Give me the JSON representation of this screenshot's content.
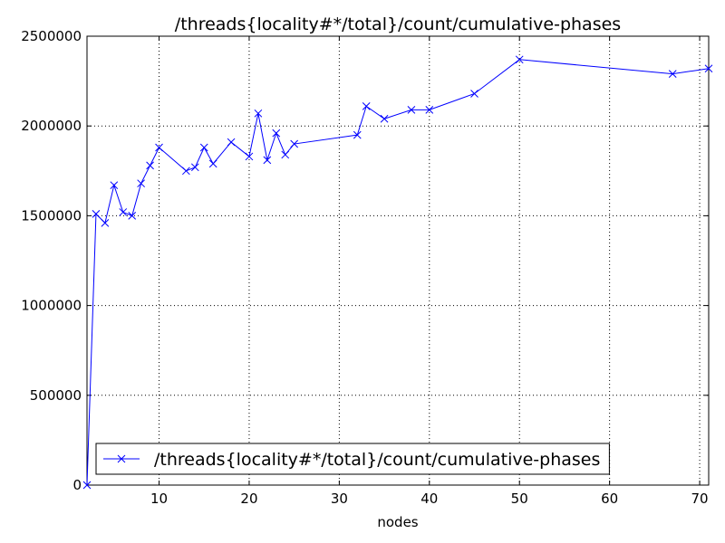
{
  "chart_data": {
    "type": "line",
    "title": "/threads{locality#*/total}/count/cumulative-phases",
    "x_label": "nodes",
    "x": [
      2,
      3,
      4,
      5,
      6,
      7,
      8,
      9,
      10,
      13,
      14,
      15,
      16,
      18,
      20,
      21,
      22,
      23,
      24,
      25,
      32,
      33,
      35,
      38,
      40,
      45,
      50,
      67,
      71
    ],
    "series": [
      {
        "name": "/threads{locality#*/total}/count/cumulative-phases",
        "color": "#0000ff",
        "values": [
          0,
          1510000,
          1460000,
          1670000,
          1520000,
          1500000,
          1680000,
          1780000,
          1880000,
          1750000,
          1770000,
          1880000,
          1790000,
          1910000,
          1830000,
          2070000,
          1810000,
          1960000,
          1840000,
          1900000,
          1950000,
          2110000,
          2040000,
          2090000,
          2090000,
          2180000,
          2370000,
          2290000,
          2320000
        ]
      }
    ],
    "xlim": [
      2,
      71
    ],
    "xticks": [
      10,
      20,
      30,
      40,
      50,
      60,
      70
    ],
    "ylim": [
      0,
      2500000
    ],
    "yticks": [
      0,
      500000,
      1000000,
      1500000,
      2000000,
      2500000
    ],
    "grid": true,
    "legend": "lower left"
  }
}
